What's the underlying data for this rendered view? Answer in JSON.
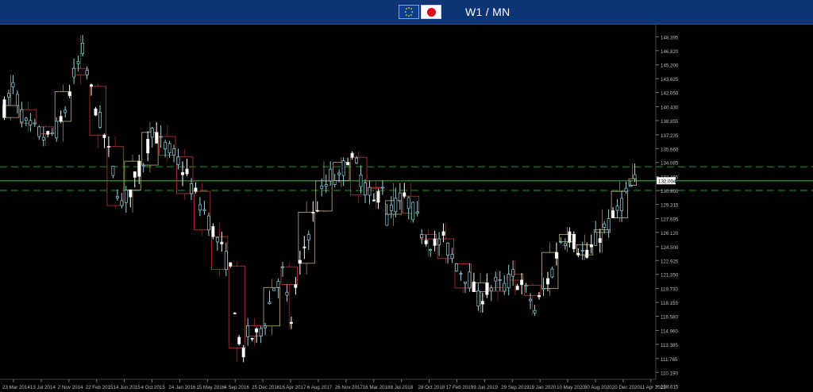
{
  "header": {
    "title": "W1 / MN",
    "flags": [
      "eu-flag-icon",
      "japan-flag-icon"
    ],
    "background_color": "#0d3474"
  },
  "chart_data": {
    "type": "candlestick",
    "title": "W1 / MN",
    "xlabel": "",
    "ylabel": "",
    "ylim": [
      109.4,
      149.6
    ],
    "grid": false,
    "background": "#000000",
    "colors": {
      "weekly_up": "#ffffff",
      "weekly_down": "#8fd3e0",
      "monthly_up": "#c8b27a",
      "monthly_down": "#c0392b",
      "level_dashed": "#1f9a1f",
      "level_solid": "#3fbf3f",
      "current_price_box": "#ffffff"
    },
    "y_ticks": [
      "148.395",
      "146.820",
      "145.200",
      "143.625",
      "142.050",
      "140.430",
      "138.855",
      "137.235",
      "135.660",
      "134.085",
      "132.465",
      "130.890",
      "129.315",
      "127.695",
      "126.120",
      "124.500",
      "122.925",
      "121.350",
      "119.730",
      "118.155",
      "116.580",
      "114.960",
      "113.385",
      "111.765",
      "110.190",
      "108.615"
    ],
    "x_ticks": [
      "23 Mar 2014",
      "13 Jul 2014",
      "2 Nov 2014",
      "22 Feb 2015",
      "14 Jun 2015",
      "4 Oct 2015",
      "24 Jan 2016",
      "15 May 2016",
      "4 Sep 2016",
      "25 Dec 2016",
      "16 Apr 2017",
      "6 Aug 2017",
      "26 Nov 2017",
      "18 Mar 2018",
      "8 Jul 2018",
      "28 Oct 2018",
      "17 Feb 2019",
      "9 Jun 2019",
      "29 Sep 2019",
      "19 Jan 2020",
      "10 May 2020",
      "30 Aug 2020",
      "20 Dec 2020",
      "11 Apr 2021"
    ],
    "current_price": "132.004",
    "levels": [
      {
        "value": 133.6,
        "style": "dashed"
      },
      {
        "value": 132.0,
        "style": "solid"
      },
      {
        "value": 130.9,
        "style": "dashed"
      }
    ],
    "path_points": [
      [
        0,
        140.3
      ],
      [
        2,
        142.6
      ],
      [
        5,
        138.2
      ],
      [
        8,
        137.4
      ],
      [
        10,
        136.8
      ],
      [
        13,
        138.4
      ],
      [
        16,
        143.9
      ],
      [
        18,
        146.7
      ],
      [
        20,
        142.1
      ],
      [
        23,
        137.0
      ],
      [
        25,
        133.1
      ],
      [
        27,
        129.2
      ],
      [
        29,
        131.0
      ],
      [
        32,
        134.3
      ],
      [
        34,
        138.0
      ],
      [
        36,
        136.2
      ],
      [
        38,
        135.4
      ],
      [
        40,
        134.2
      ],
      [
        42,
        132.5
      ],
      [
        44,
        130.2
      ],
      [
        46,
        128.6
      ],
      [
        48,
        126.3
      ],
      [
        50,
        124.1
      ],
      [
        52,
        121.8
      ],
      [
        53,
        117.8
      ],
      [
        54,
        113.2
      ],
      [
        55,
        112.6
      ],
      [
        56,
        114.4
      ],
      [
        58,
        114.1
      ],
      [
        60,
        116.2
      ],
      [
        62,
        119.9
      ],
      [
        64,
        121.6
      ],
      [
        65,
        118.3
      ],
      [
        66,
        116.1
      ],
      [
        67,
        119.7
      ],
      [
        69,
        124.5
      ],
      [
        71,
        127.9
      ],
      [
        73,
        130.5
      ],
      [
        75,
        132.5
      ],
      [
        77,
        132.0
      ],
      [
        79,
        134.9
      ],
      [
        81,
        133.6
      ],
      [
        83,
        131.2
      ],
      [
        85,
        129.3
      ],
      [
        87,
        131.8
      ],
      [
        88,
        127.5
      ],
      [
        89,
        128.8
      ],
      [
        91,
        129.9
      ],
      [
        93,
        129.6
      ],
      [
        95,
        127.5
      ],
      [
        97,
        125.6
      ],
      [
        99,
        124.7
      ],
      [
        101,
        125.2
      ],
      [
        103,
        123.3
      ],
      [
        105,
        121.8
      ],
      [
        107,
        120.8
      ],
      [
        109,
        118.4
      ],
      [
        111,
        119.6
      ],
      [
        113,
        120.2
      ],
      [
        115,
        119.9
      ],
      [
        117,
        121.2
      ],
      [
        119,
        120.0
      ],
      [
        121,
        118.6
      ],
      [
        122,
        117.2
      ],
      [
        124,
        119.5
      ],
      [
        126,
        121.8
      ],
      [
        128,
        125.3
      ],
      [
        130,
        125.9
      ],
      [
        132,
        124.4
      ],
      [
        134,
        123.3
      ],
      [
        136,
        125.1
      ],
      [
        138,
        126.6
      ],
      [
        140,
        127.6
      ],
      [
        142,
        129.6
      ],
      [
        144,
        131.2
      ],
      [
        145,
        131.9
      ]
    ],
    "volatility": {
      "seed": 7,
      "body": 1.1,
      "wick": 1.3
    }
  }
}
